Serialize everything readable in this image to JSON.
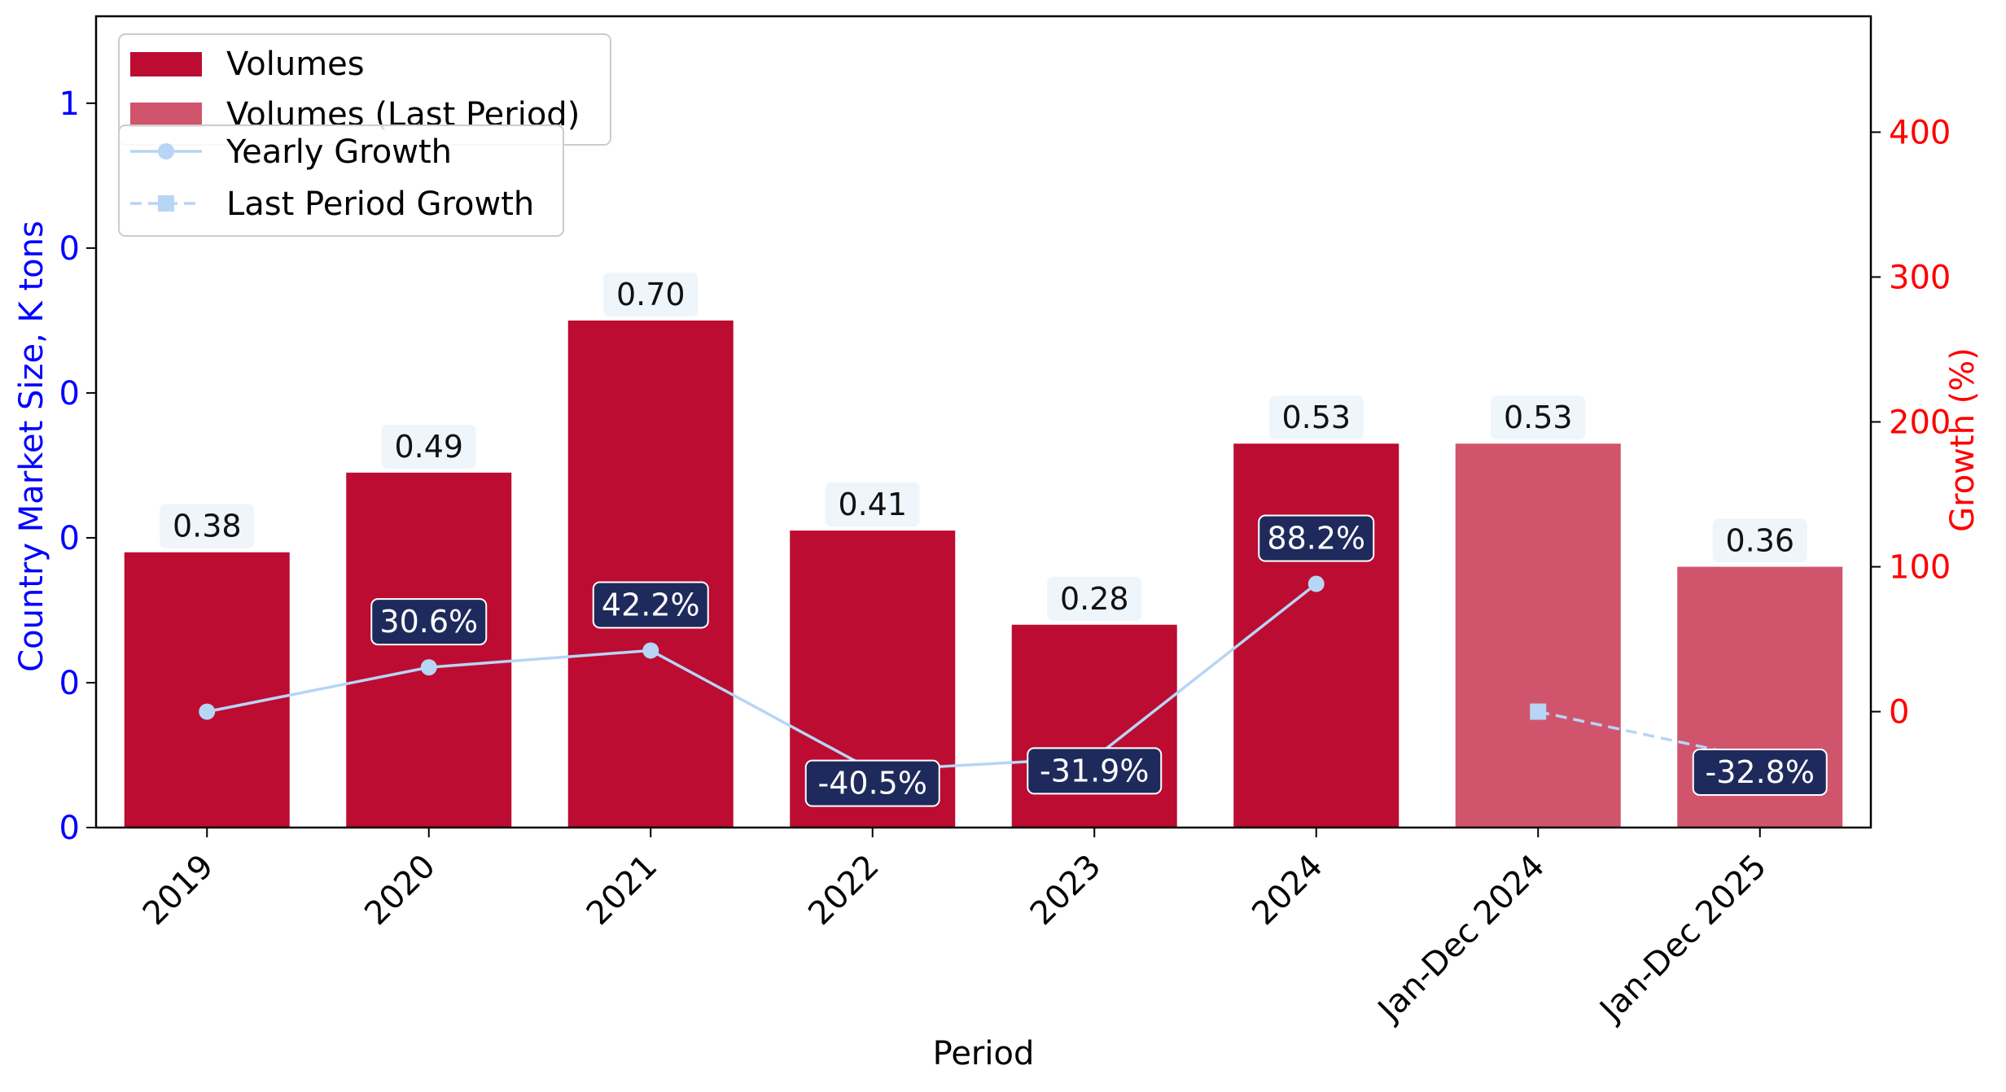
{
  "chart_data": {
    "type": "bar",
    "xlabel": "Period",
    "ylabel": "Country Market Size, K tons",
    "y2label": "Growth (%)",
    "categories": [
      "2019",
      "2020",
      "2021",
      "2022",
      "2023",
      "2024",
      "Jan-Dec 2024",
      "Jan-Dec 2025"
    ],
    "series": [
      {
        "name": "Volumes",
        "kind": "bar",
        "axis": "left",
        "color": "#BC0C31",
        "values": [
          0.38,
          0.49,
          0.7,
          0.41,
          0.28,
          0.53,
          null,
          null
        ],
        "labels": [
          "0.38",
          "0.49",
          "0.70",
          "0.41",
          "0.28",
          "0.53",
          "",
          ""
        ]
      },
      {
        "name": "Volumes (Last Period)",
        "kind": "bar",
        "axis": "left",
        "color": "#D1546D",
        "values": [
          null,
          null,
          null,
          null,
          null,
          null,
          0.53,
          0.36
        ],
        "labels": [
          "",
          "",
          "",
          "",
          "",
          "",
          "0.53",
          "0.36"
        ]
      },
      {
        "name": "Yearly Growth",
        "kind": "line",
        "axis": "right",
        "color": "#B7D5F5",
        "marker": "circle",
        "values": [
          0,
          30.6,
          42.2,
          -40.5,
          -31.9,
          88.2,
          null,
          null
        ],
        "labels": [
          "",
          "30.6%",
          "42.2%",
          "-40.5%",
          "-31.9%",
          "88.2%",
          "",
          ""
        ]
      },
      {
        "name": "Last Period Growth",
        "kind": "line",
        "axis": "right",
        "color": "#B7D5F5",
        "marker": "square",
        "dashed": true,
        "values": [
          null,
          null,
          null,
          null,
          null,
          null,
          0,
          -32.8
        ],
        "labels": [
          "",
          "",
          "",
          "",
          "",
          "",
          "",
          "-32.8%"
        ]
      }
    ],
    "ylim": [
      0,
      1.12
    ],
    "y_ticks": [
      0,
      0.2,
      0.4,
      0.6,
      0.8,
      1.0
    ],
    "y_tick_labels": [
      "0",
      "0",
      "0",
      "0",
      "0",
      "1"
    ],
    "y2lim": [
      -80,
      480
    ],
    "y2_ticks": [
      0,
      100,
      200,
      300,
      400
    ],
    "y2_tick_labels": [
      "0",
      "100",
      "200",
      "300",
      "400"
    ],
    "left_axis_color": "#0000FF",
    "right_axis_color": "#FF0000",
    "value_label_bg": "#EEF5FB",
    "growth_label_bg": "#1F2A5C",
    "grid": false,
    "legend_position": "top-left"
  }
}
